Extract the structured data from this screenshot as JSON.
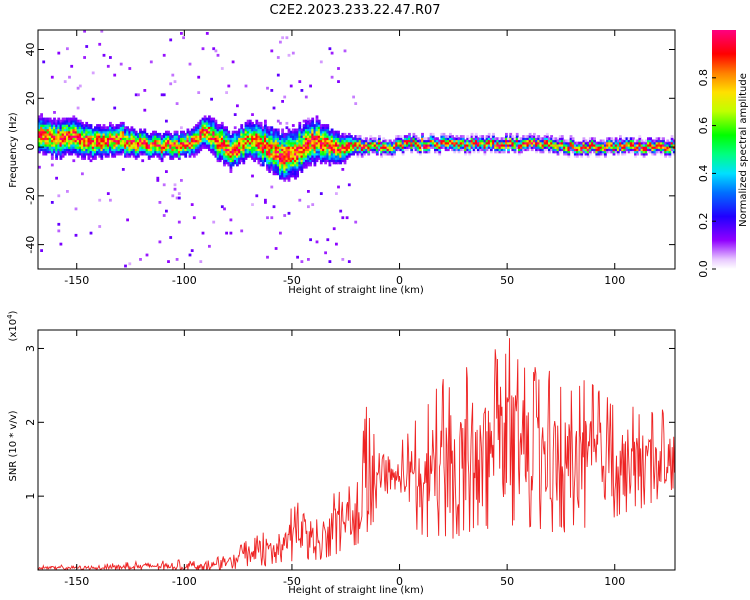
{
  "title": "C2E2.2023.233.22.47.R07",
  "chart_data": [
    {
      "type": "heatmap",
      "xlabel": "Height of straight line (km)",
      "ylabel": "Frequency (Hz)",
      "xlim": [
        -168,
        128
      ],
      "ylim": [
        -50,
        48
      ],
      "xticks": [
        -150,
        -100,
        -50,
        0,
        50,
        100
      ],
      "yticks": [
        -40,
        -20,
        0,
        20,
        40
      ],
      "colorbar": {
        "label": "Normalized spectral amplitude",
        "range": [
          0,
          1
        ],
        "ticks": [
          "0.0",
          "0.2",
          "0.4",
          "0.6",
          "0.8"
        ],
        "colormap": "rainbow (white-purple-blue-cyan-green-yellow-red-magenta)"
      },
      "ridge": {
        "description": "high-amplitude band centered near 0 Hz",
        "x": [
          -165,
          -150,
          -140,
          -130,
          -120,
          -110,
          -100,
          -92,
          -85,
          -78,
          -70,
          -62,
          -55,
          -48,
          -40,
          -34,
          -28,
          -22,
          -15,
          -5,
          0,
          20,
          40,
          60,
          80,
          100,
          120,
          128
        ],
        "y": [
          4,
          3,
          2,
          3,
          1,
          0,
          0,
          6,
          2,
          -2,
          3,
          0,
          -4,
          -2,
          2,
          1,
          -2,
          1,
          0,
          0,
          1,
          1,
          1,
          1,
          0,
          0,
          0,
          0
        ],
        "band_halfwidth_hz": [
          6,
          6,
          5,
          5,
          4,
          4,
          4,
          5,
          6,
          6,
          6,
          7,
          8,
          8,
          7,
          6,
          5,
          3,
          2,
          2,
          2,
          2,
          2,
          2,
          2,
          2,
          2,
          2
        ]
      }
    },
    {
      "type": "line",
      "xlabel": "Height of straight line (km)",
      "ylabel": "SNR (10 * v/v)",
      "y_multiplier": "(x10^4)",
      "y_multiplier_base": "(x10",
      "y_multiplier_exp": "4",
      "y_multiplier_close": ")",
      "xlim": [
        -168,
        128
      ],
      "ylim": [
        0,
        3.25
      ],
      "xticks": [
        -150,
        -100,
        -50,
        0,
        50,
        100
      ],
      "yticks": [
        1,
        2,
        3
      ],
      "series": [
        {
          "color": "#ee2222",
          "envelope": {
            "x": [
              -168,
              -140,
              -120,
              -100,
              -90,
              -80,
              -75,
              -70,
              -60,
              -55,
              -50,
              -45,
              -40,
              -35,
              -30,
              -25,
              -20,
              -15,
              -10,
              -5,
              0,
              10,
              20,
              30,
              40,
              50,
              60,
              70,
              80,
              90,
              100,
              110,
              120,
              128
            ],
            "max": [
              0.06,
              0.08,
              0.12,
              0.14,
              0.12,
              0.22,
              0.35,
              0.42,
              0.6,
              0.75,
              0.9,
              1.05,
              0.85,
              0.95,
              1.05,
              1.2,
              1.15,
              2.3,
              1.6,
              1.55,
              1.7,
              2.2,
              2.6,
              2.8,
              3.0,
              3.2,
              2.8,
              2.7,
              2.6,
              2.55,
              2.35,
              2.25,
              2.2,
              2.1
            ],
            "min": [
              0.0,
              0.0,
              0.0,
              0.0,
              0.0,
              0.0,
              0.02,
              0.05,
              0.05,
              0.08,
              0.1,
              0.15,
              0.1,
              0.15,
              0.2,
              0.3,
              0.3,
              0.45,
              0.7,
              0.85,
              0.95,
              0.4,
              0.4,
              0.45,
              0.5,
              0.6,
              0.5,
              0.5,
              0.5,
              0.6,
              0.7,
              0.8,
              0.9,
              1.1
            ]
          }
        }
      ]
    }
  ]
}
